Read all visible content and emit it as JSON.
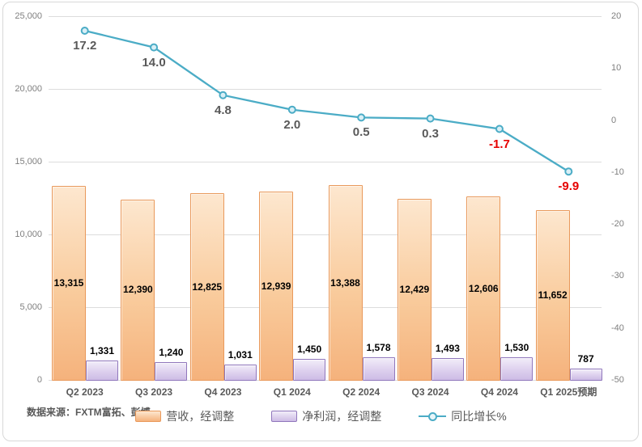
{
  "chart_data": {
    "type": "bar",
    "subtype": "combo-bar-line-dual-axis",
    "categories": [
      "Q2 2023",
      "Q3 2023",
      "Q4 2023",
      "Q1 2024",
      "Q2 2024",
      "Q3 2024",
      "Q4 2024",
      "Q1 2025预期"
    ],
    "series": [
      {
        "name": "营收，经调整",
        "type": "bar",
        "axis": "left",
        "values": [
          13315,
          12390,
          12825,
          12939,
          13388,
          12429,
          12606,
          11652
        ],
        "labels": [
          "13,315",
          "12,390",
          "12,825",
          "12,939",
          "13,388",
          "12,429",
          "12,606",
          "11,652"
        ],
        "fill_top": "#FDE7CF",
        "fill_bottom": "#F5B27C",
        "border_color": "#E9995B"
      },
      {
        "name": "净利润，经调整",
        "type": "bar",
        "axis": "left",
        "values": [
          1331,
          1240,
          1031,
          1450,
          1578,
          1493,
          1530,
          787
        ],
        "labels": [
          "1,331",
          "1,240",
          "1,031",
          "1,450",
          "1,578",
          "1,493",
          "1,530",
          "787"
        ],
        "fill_top": "#F2EDF9",
        "fill_bottom": "#CDBCE5",
        "border_color": "#9077BC"
      },
      {
        "name": "同比增长%",
        "type": "line",
        "axis": "right",
        "values": [
          17.2,
          14.0,
          4.8,
          2.0,
          0.5,
          0.3,
          -1.7,
          -9.9
        ],
        "labels": [
          "17.2",
          "14.0",
          "4.8",
          "2.0",
          "0.5",
          "0.3",
          "-1.7",
          "-9.9"
        ],
        "line_color": "#4BACC6",
        "marker_fill": "#D9EFF6",
        "label_color": "#595959",
        "negative_label_color": "#E60000"
      }
    ],
    "left_axis": {
      "min": 0,
      "max": 25000,
      "step": 5000,
      "tick_labels": [
        "25,000",
        "20,000",
        "15,000",
        "10,000",
        "5,000",
        "0"
      ]
    },
    "right_axis": {
      "min": -50,
      "max": 20,
      "step": 10,
      "tick_labels": [
        "20",
        "10",
        "0",
        "-10",
        "-20",
        "-30",
        "-40",
        "-50"
      ]
    },
    "grid": true,
    "legend_position": "bottom",
    "title": "",
    "source": "数据来源：FXTM富拓、彭博"
  }
}
